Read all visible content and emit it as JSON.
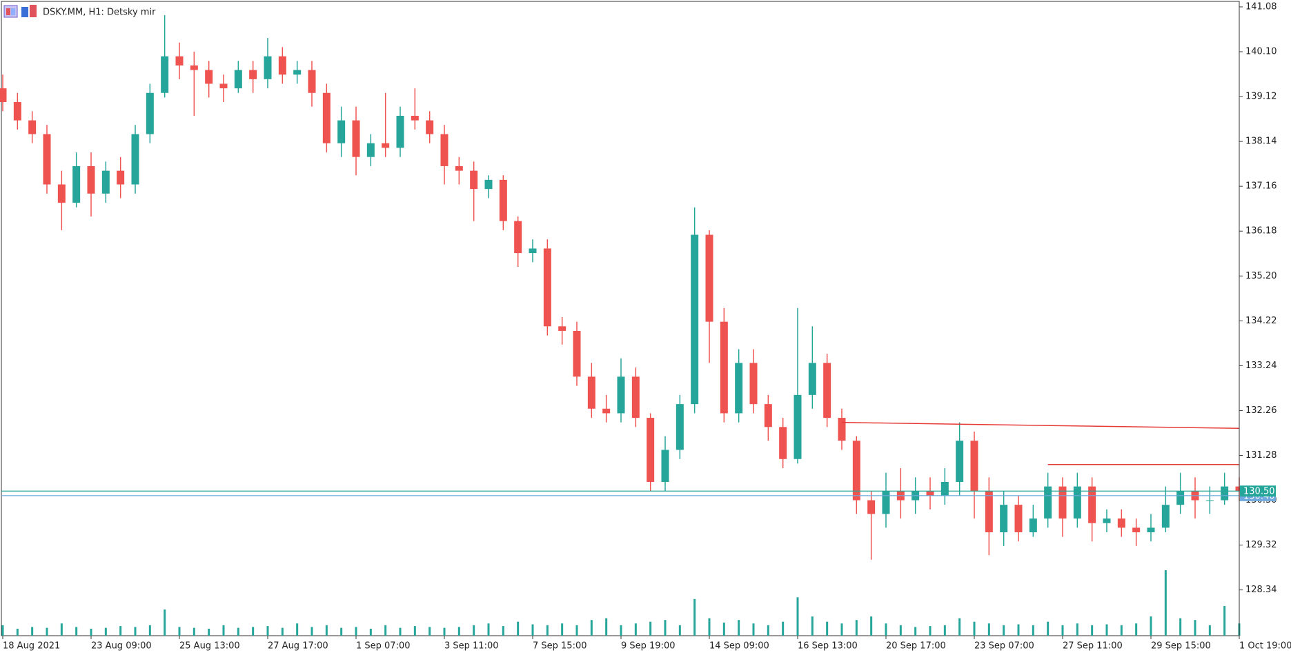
{
  "chart_data": {
    "type": "candlestick",
    "title": "DSKY.MM, H1:  Detsky mir",
    "categories": [
      "18 Aug 2021",
      null,
      null,
      null,
      null,
      null,
      "23 Aug 09:00",
      null,
      null,
      null,
      null,
      null,
      "25 Aug 13:00",
      null,
      null,
      null,
      null,
      null,
      "27 Aug 17:00",
      null,
      null,
      null,
      null,
      null,
      "1 Sep 07:00",
      null,
      null,
      null,
      null,
      null,
      "3 Sep 11:00",
      null,
      null,
      null,
      null,
      null,
      "7 Sep 15:00",
      null,
      null,
      null,
      null,
      null,
      "9 Sep 19:00",
      null,
      null,
      null,
      null,
      null,
      "14 Sep 09:00",
      null,
      null,
      null,
      null,
      null,
      "16 Sep 13:00",
      null,
      null,
      null,
      null,
      null,
      "20 Sep 17:00",
      null,
      null,
      null,
      null,
      null,
      "23 Sep 07:00",
      null,
      null,
      null,
      null,
      null,
      "27 Sep 11:00",
      null,
      null,
      null,
      null,
      null,
      "29 Sep 15:00",
      null,
      null,
      null,
      null,
      null,
      "1 Oct 19:00"
    ],
    "open": [
      139.3,
      139.0,
      138.6,
      138.3,
      137.2,
      136.8,
      137.6,
      137.0,
      137.5,
      137.2,
      138.3,
      139.2,
      140.0,
      139.8,
      139.7,
      139.4,
      139.3,
      139.7,
      139.5,
      140.0,
      139.6,
      139.7,
      139.2,
      138.1,
      138.6,
      137.8,
      138.1,
      138.0,
      138.7,
      138.6,
      138.3,
      137.6,
      137.5,
      137.1,
      137.3,
      136.4,
      135.7,
      135.8,
      134.1,
      134.0,
      133.0,
      132.3,
      132.2,
      133.0,
      132.1,
      130.7,
      131.4,
      132.4,
      136.1,
      134.2,
      132.2,
      133.3,
      132.4,
      131.9,
      131.2,
      132.6,
      133.3,
      132.1,
      131.6,
      130.3,
      130.0,
      130.5,
      130.3,
      130.5,
      130.4,
      130.7,
      131.6,
      130.5,
      129.6,
      130.2,
      129.6,
      129.9,
      130.6,
      129.9,
      130.6,
      129.8,
      129.9,
      129.7,
      129.6,
      129.7,
      130.2,
      130.5,
      130.3,
      130.3,
      130.6
    ],
    "high": [
      139.6,
      139.2,
      138.8,
      138.5,
      137.5,
      137.9,
      137.9,
      137.7,
      137.8,
      138.5,
      139.4,
      140.9,
      140.3,
      140.1,
      139.9,
      139.6,
      139.9,
      139.9,
      140.4,
      140.2,
      139.9,
      139.9,
      139.4,
      138.9,
      138.9,
      138.3,
      139.2,
      138.9,
      139.3,
      138.8,
      138.5,
      137.8,
      137.7,
      137.4,
      137.4,
      136.5,
      136.0,
      136.0,
      134.3,
      134.2,
      133.3,
      132.6,
      133.4,
      133.2,
      132.2,
      131.7,
      132.6,
      136.7,
      136.2,
      134.5,
      133.6,
      133.6,
      132.6,
      132.1,
      134.5,
      134.1,
      133.5,
      132.3,
      131.7,
      130.5,
      130.9,
      131.0,
      130.8,
      130.8,
      131.0,
      132.0,
      131.8,
      130.8,
      130.5,
      130.4,
      130.2,
      130.9,
      130.8,
      130.9,
      130.8,
      130.1,
      130.1,
      129.9,
      130.0,
      130.6,
      130.9,
      130.8,
      130.6,
      130.9,
      130.8
    ],
    "low": [
      138.8,
      138.4,
      138.1,
      137.0,
      136.2,
      136.7,
      136.5,
      136.8,
      136.9,
      137.0,
      138.1,
      139.1,
      139.5,
      138.7,
      139.1,
      139.0,
      139.2,
      139.2,
      139.3,
      139.4,
      139.4,
      138.9,
      137.9,
      137.8,
      137.4,
      137.6,
      137.8,
      137.8,
      138.4,
      138.1,
      137.2,
      137.2,
      136.4,
      136.9,
      136.2,
      135.4,
      135.5,
      133.9,
      133.7,
      132.8,
      132.1,
      132.0,
      132.0,
      131.9,
      130.5,
      130.5,
      131.2,
      132.2,
      133.3,
      132.0,
      132.0,
      132.2,
      131.6,
      131.0,
      131.1,
      132.3,
      131.9,
      131.4,
      130.0,
      129.0,
      129.7,
      129.9,
      130.0,
      130.1,
      130.2,
      130.4,
      129.9,
      129.1,
      129.3,
      129.4,
      129.5,
      129.7,
      129.5,
      129.7,
      129.4,
      129.6,
      129.5,
      129.3,
      129.4,
      129.6,
      130.0,
      129.9,
      130.0,
      130.2,
      130.3
    ],
    "close": [
      139.0,
      138.6,
      138.3,
      137.2,
      136.8,
      137.6,
      137.0,
      137.5,
      137.2,
      138.3,
      139.2,
      140.0,
      139.8,
      139.7,
      139.4,
      139.3,
      139.7,
      139.5,
      140.0,
      139.6,
      139.7,
      139.2,
      138.1,
      138.6,
      137.8,
      138.1,
      138.0,
      138.7,
      138.6,
      138.3,
      137.6,
      137.5,
      137.1,
      137.3,
      136.4,
      135.7,
      135.8,
      134.1,
      134.0,
      133.0,
      132.3,
      132.2,
      133.0,
      132.1,
      130.7,
      131.4,
      132.4,
      136.1,
      134.2,
      132.2,
      133.3,
      132.4,
      131.9,
      131.2,
      132.6,
      133.3,
      132.1,
      131.6,
      130.3,
      130.0,
      130.5,
      130.3,
      130.5,
      130.4,
      130.7,
      131.6,
      130.5,
      129.6,
      130.2,
      129.6,
      129.9,
      130.6,
      129.9,
      130.6,
      129.8,
      129.9,
      129.7,
      129.6,
      129.7,
      130.2,
      130.5,
      130.3,
      130.3,
      130.6,
      130.5
    ],
    "volume": [
      12,
      8,
      10,
      9,
      14,
      10,
      8,
      9,
      11,
      10,
      12,
      30,
      10,
      9,
      8,
      12,
      9,
      10,
      11,
      9,
      14,
      10,
      12,
      9,
      10,
      8,
      12,
      9,
      11,
      10,
      9,
      10,
      12,
      14,
      11,
      16,
      13,
      12,
      14,
      12,
      18,
      20,
      12,
      14,
      16,
      18,
      12,
      42,
      20,
      15,
      18,
      14,
      12,
      16,
      44,
      22,
      16,
      14,
      18,
      22,
      14,
      12,
      10,
      11,
      12,
      20,
      16,
      14,
      12,
      13,
      12,
      16,
      12,
      14,
      12,
      13,
      12,
      14,
      22,
      75,
      20,
      18,
      12,
      34,
      14
    ],
    "up_color": "#26a69a",
    "down_color": "#ef5350",
    "volume_color": "#26a69a",
    "ylim": [
      127.34,
      141.2
    ],
    "yticks": [
      128.34,
      129.32,
      {
        "value": 130.3,
        "label": "130.30"
      },
      131.28,
      132.26,
      133.24,
      134.22,
      {
        "value": 135.2,
        "label": "135.20"
      },
      136.18,
      137.16,
      138.14,
      139.12,
      {
        "value": 140.1,
        "label": "140.10"
      },
      141.08
    ],
    "levels": [
      {
        "value": {
          "value": 130.4,
          "label": "130.40"
        },
        "color": "#6fa8dc"
      },
      {
        "value": {
          "value": 130.5,
          "label": "130.50"
        },
        "color": "#26a69a"
      }
    ],
    "trendlines": [
      {
        "x": [
          57,
          84
        ],
        "values": [
          132.0,
          131.87
        ],
        "color": "#e53935"
      },
      {
        "x": [
          71,
          84
        ],
        "values": [
          131.08,
          131.08
        ],
        "color": "#e53935"
      }
    ]
  }
}
